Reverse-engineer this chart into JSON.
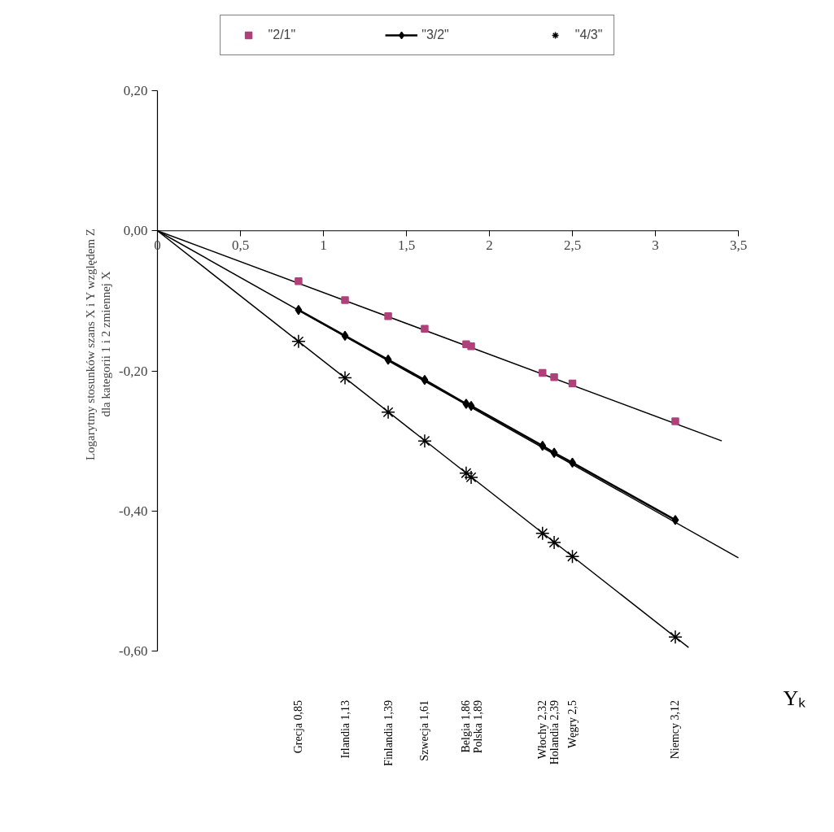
{
  "chart_data": {
    "type": "scatter",
    "xlabel": "Υₖ",
    "ylabel": "Logarytmy stosunków szans X i Y względem Z\ndla kategorii 1 i 2 zmiennej X",
    "xlim": [
      0,
      3.5
    ],
    "ylim": [
      -0.6,
      0.2
    ],
    "xticks": [
      0,
      {
        "value": 0.5,
        "label": "0,5"
      },
      1,
      {
        "value": 1.5,
        "label": "1,5"
      },
      2,
      {
        "value": 2.5,
        "label": "2,5"
      },
      3,
      {
        "value": 3.5,
        "label": "3,5"
      }
    ],
    "yticks": [
      {
        "value": -0.6,
        "label": "-0,60"
      },
      {
        "value": -0.4,
        "label": "-0,40"
      },
      {
        "value": -0.2,
        "label": "-0,20"
      },
      {
        "value": 0,
        "label": "0,00"
      },
      {
        "value": 0.2,
        "label": "0,20"
      }
    ],
    "grid": false,
    "legend": "top",
    "series": [
      {
        "type": "line",
        "marker": "none",
        "color": "#000000",
        "x": [
          0,
          3.4
        ],
        "values": [
          0,
          -0.3
        ]
      },
      {
        "type": "line",
        "marker": "none",
        "color": "#000000",
        "x": [
          0,
          3.5
        ],
        "values": [
          0,
          -0.467
        ]
      },
      {
        "type": "line",
        "marker": "none",
        "color": "#000000",
        "x": [
          0,
          3.2
        ],
        "values": [
          0,
          -0.595
        ]
      },
      {
        "name": "\"2/1\"",
        "marker": "square",
        "color": "#b0407a",
        "x": [
          0.85,
          1.13,
          1.39,
          1.61,
          1.86,
          1.89,
          2.32,
          2.39,
          2.5,
          3.12
        ],
        "values": [
          -0.072,
          -0.099,
          -0.122,
          -0.14,
          -0.162,
          -0.165,
          -0.203,
          -0.209,
          -0.218,
          -0.272
        ]
      },
      {
        "name": "\"3/2\"",
        "type": "line",
        "marker": "diamond",
        "color": "#000000",
        "x": [
          0.85,
          1.13,
          1.39,
          1.61,
          1.86,
          1.89,
          2.32,
          2.39,
          2.5,
          3.12
        ],
        "values": [
          -0.113,
          -0.15,
          -0.184,
          -0.213,
          -0.247,
          -0.25,
          -0.307,
          -0.317,
          -0.331,
          -0.413
        ]
      },
      {
        "name": "\"4/3\"",
        "marker": "cross",
        "color": "#000000",
        "x": [
          0.85,
          1.13,
          1.39,
          1.61,
          1.86,
          1.89,
          2.32,
          2.39,
          2.5,
          3.12
        ],
        "values": [
          -0.158,
          -0.21,
          -0.259,
          -0.3,
          -0.346,
          -0.352,
          -0.432,
          -0.445,
          -0.465,
          -0.58
        ]
      }
    ],
    "annotations": [
      "Grecja 0,85",
      "Irlandia 1,13",
      "Finlandia 1,39",
      "Szwecja 1,61",
      "Belgia 1,86",
      "Polska 1,89",
      "Włochy 2,32",
      "Holandia 2,39",
      "Węgry 2,5",
      "Niemcy 3,12"
    ]
  }
}
